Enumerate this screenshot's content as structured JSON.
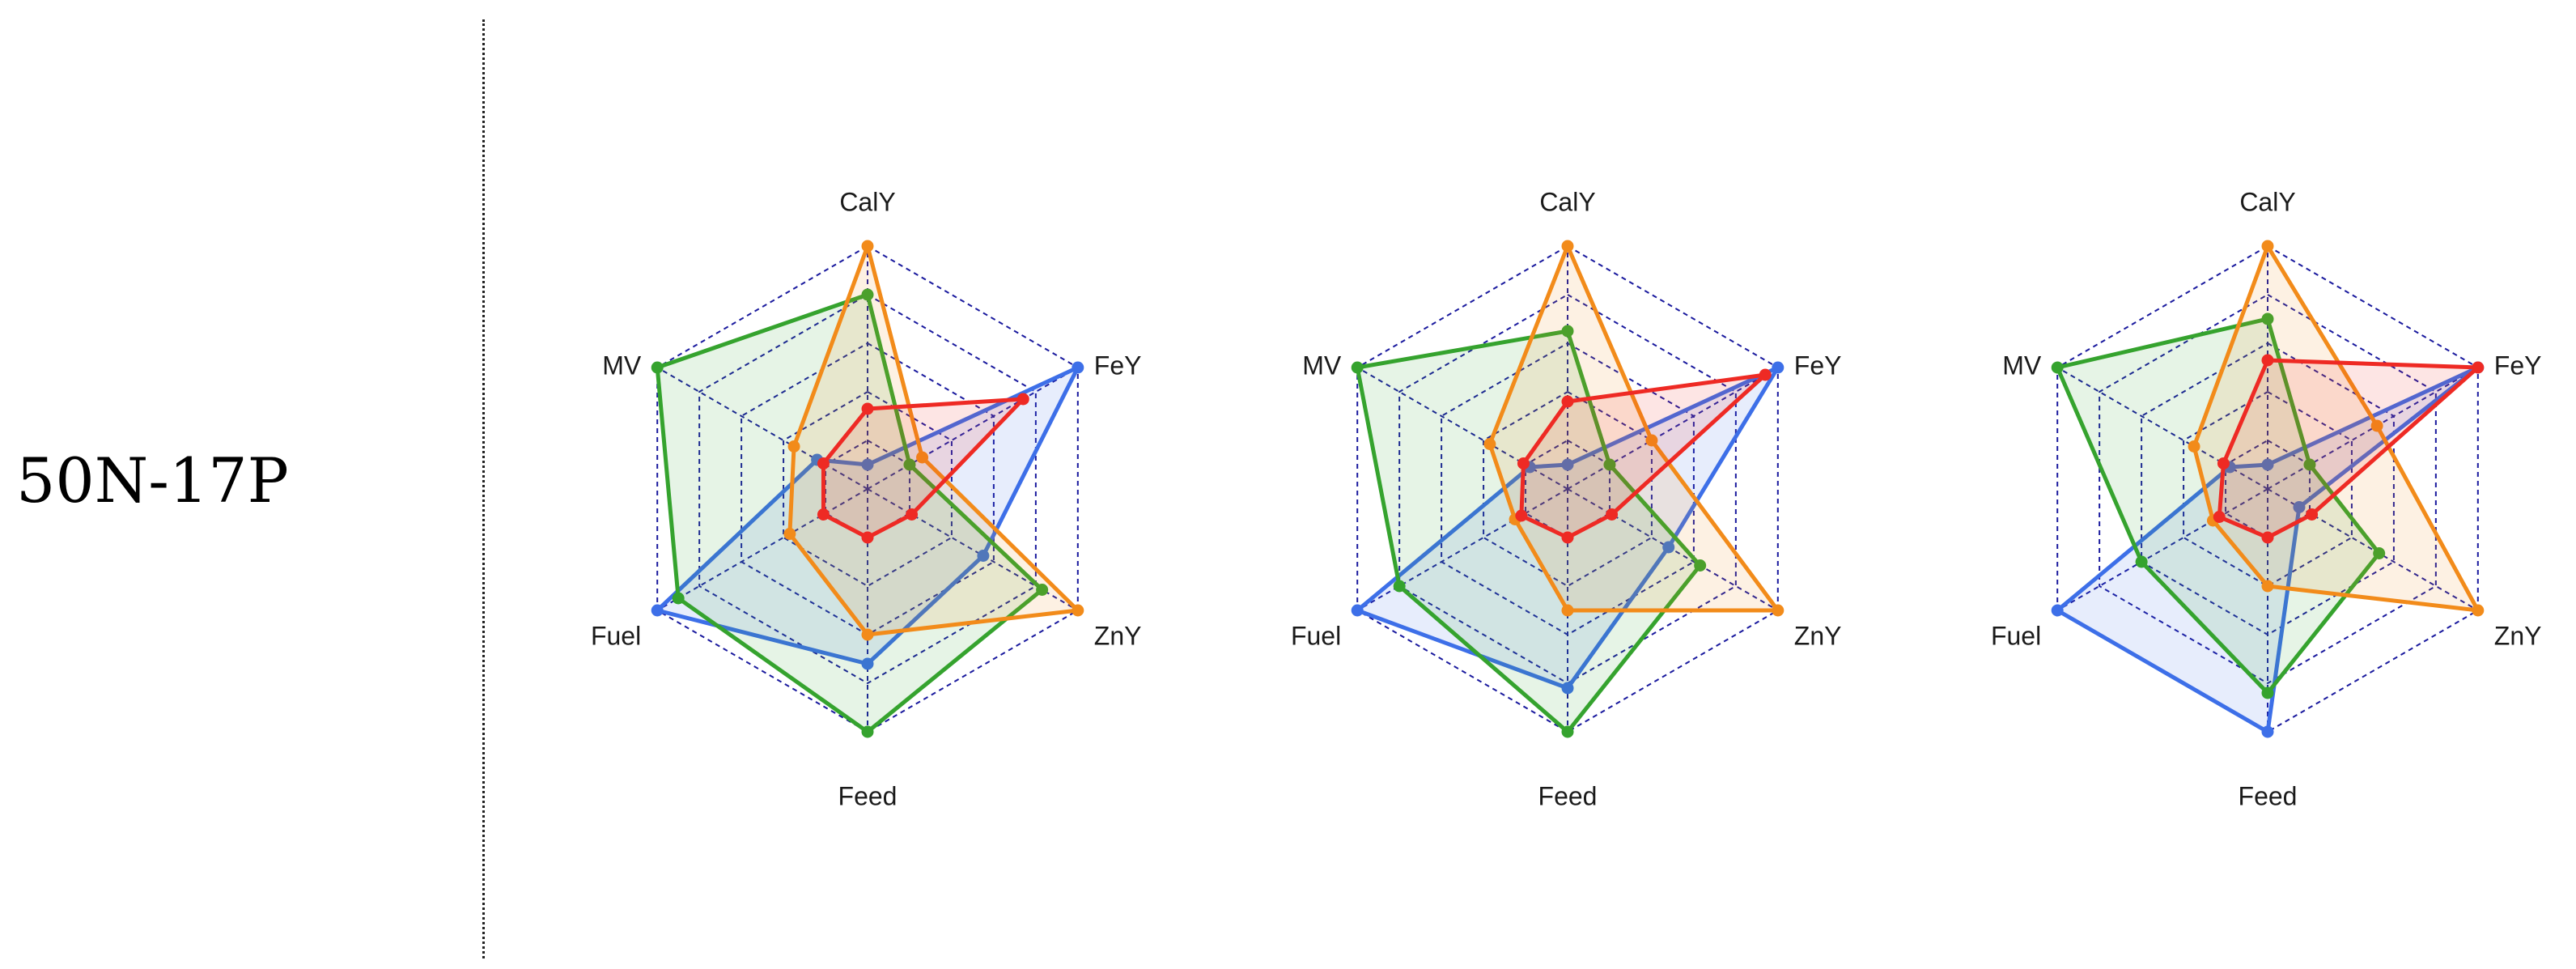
{
  "row_label": "50N-17P",
  "colors": {
    "red": "#ee2a24",
    "orange": "#f28b1a",
    "green": "#35a32e",
    "blue": "#3d6fe8",
    "grid": "#1a1a9e"
  },
  "chart_data": [
    {
      "type": "radar",
      "axes": [
        "CalY",
        "FeY",
        "ZnY",
        "Feed",
        "Fuel",
        "MV"
      ],
      "rmax": 1.0,
      "rings": 5,
      "grid": true,
      "series": [
        {
          "color": "blue",
          "values": [
            0.1,
            1.0,
            0.55,
            0.72,
            1.0,
            0.24
          ]
        },
        {
          "color": "green",
          "values": [
            0.8,
            0.2,
            0.83,
            1.0,
            0.9,
            1.0
          ]
        },
        {
          "color": "orange",
          "values": [
            1.0,
            0.26,
            1.0,
            0.6,
            0.37,
            0.35
          ]
        },
        {
          "color": "red",
          "values": [
            0.33,
            0.74,
            0.21,
            0.2,
            0.21,
            0.21
          ]
        }
      ]
    },
    {
      "type": "radar",
      "axes": [
        "CalY",
        "FeY",
        "ZnY",
        "Feed",
        "Fuel",
        "MV"
      ],
      "rmax": 1.0,
      "rings": 5,
      "grid": true,
      "series": [
        {
          "color": "blue",
          "values": [
            0.1,
            1.0,
            0.48,
            0.82,
            1.0,
            0.18
          ]
        },
        {
          "color": "green",
          "values": [
            0.65,
            0.2,
            0.63,
            1.0,
            0.8,
            1.0
          ]
        },
        {
          "color": "orange",
          "values": [
            1.0,
            0.4,
            1.0,
            0.5,
            0.25,
            0.37
          ]
        },
        {
          "color": "red",
          "values": [
            0.36,
            0.94,
            0.21,
            0.2,
            0.22,
            0.21
          ]
        }
      ]
    },
    {
      "type": "radar",
      "axes": [
        "CalY",
        "FeY",
        "ZnY",
        "Feed",
        "Fuel",
        "MV"
      ],
      "rmax": 1.0,
      "rings": 5,
      "grid": true,
      "series": [
        {
          "color": "blue",
          "values": [
            0.1,
            1.0,
            0.15,
            1.0,
            1.0,
            0.18
          ]
        },
        {
          "color": "green",
          "values": [
            0.7,
            0.2,
            0.53,
            0.84,
            0.6,
            1.0
          ]
        },
        {
          "color": "orange",
          "values": [
            1.0,
            0.52,
            1.0,
            0.4,
            0.26,
            0.35
          ]
        },
        {
          "color": "red",
          "values": [
            0.53,
            1.0,
            0.21,
            0.2,
            0.23,
            0.21
          ]
        }
      ]
    }
  ]
}
